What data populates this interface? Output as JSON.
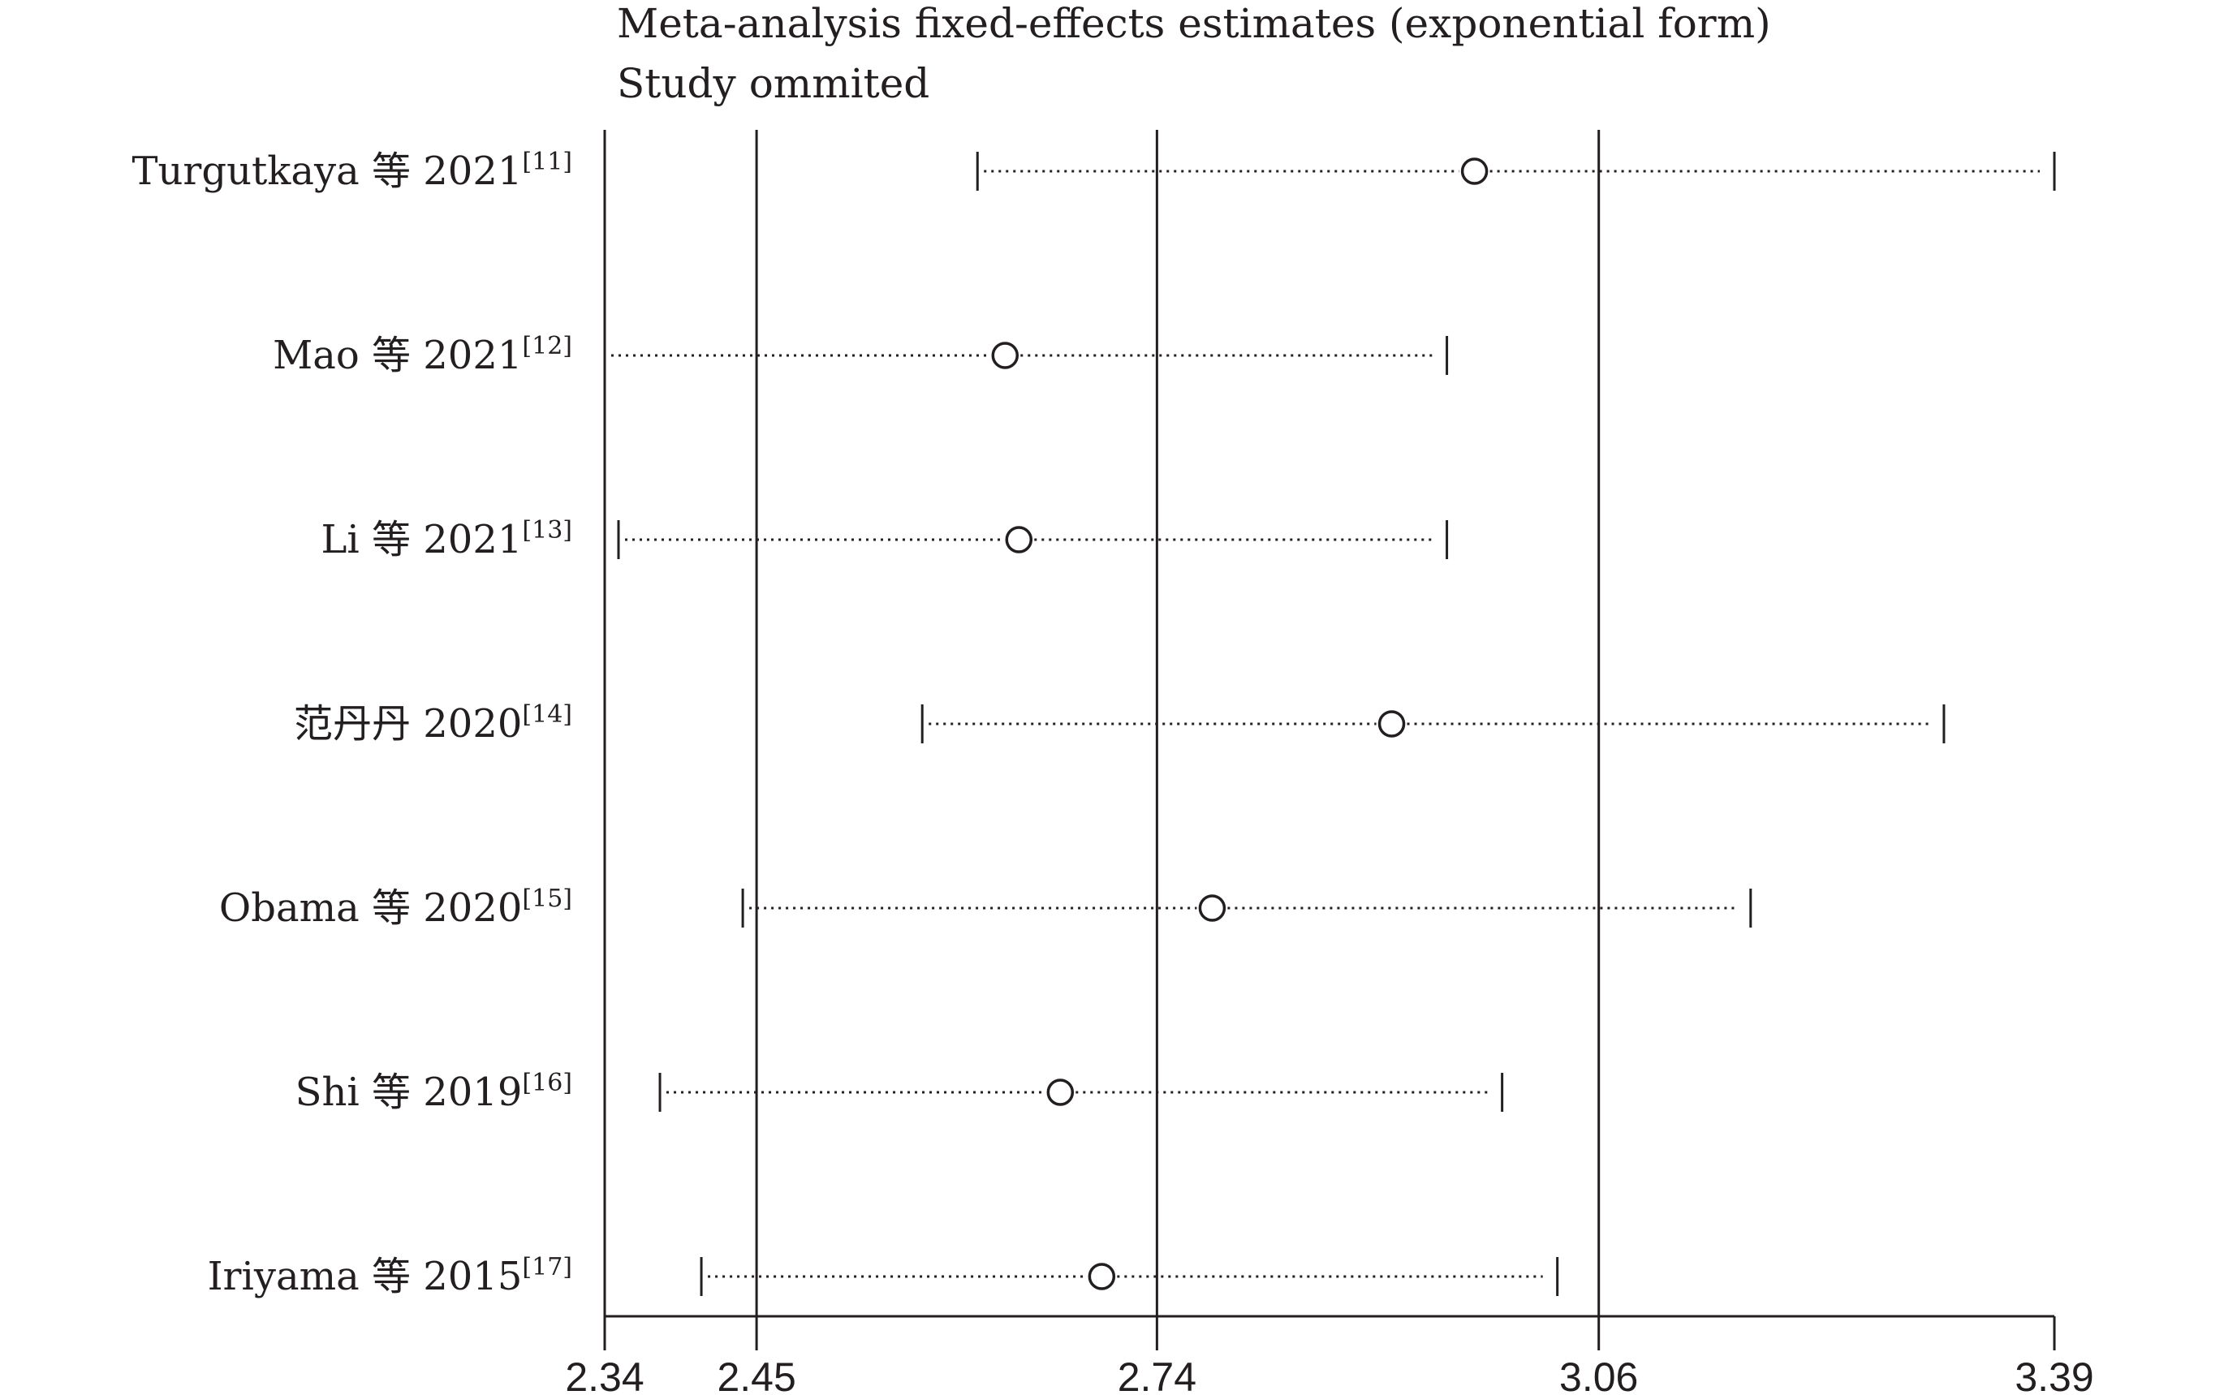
{
  "chart_data": {
    "type": "scatter",
    "title": "Meta-analysis fixed-effects estimates (exponential form)",
    "subtitle": "Study ommited",
    "xlabel": "",
    "ylabel": "",
    "xlim": [
      2.34,
      3.39
    ],
    "x_ticks": [
      "2.34",
      "2.45",
      "2.74",
      "3.06",
      "3.39"
    ],
    "reference_lines": [
      2.45,
      2.74,
      3.06
    ],
    "series": [
      {
        "values": [
          {
            "label": "Turgutkaya 等 2021",
            "ref": "[11]",
            "estimate": 2.97,
            "lower": 2.61,
            "upper": 3.39
          },
          {
            "label": "Mao 等 2021",
            "ref": "[12]",
            "estimate": 2.63,
            "lower": 2.34,
            "upper": 2.95
          },
          {
            "label": "Li 等 2021",
            "ref": "[13]",
            "estimate": 2.64,
            "lower": 2.35,
            "upper": 2.95
          },
          {
            "label": "范丹丹  2020",
            "ref": "[14]",
            "estimate": 2.91,
            "lower": 2.57,
            "upper": 3.31
          },
          {
            "label": "Obama 等 2020",
            "ref": "[15]",
            "estimate": 2.78,
            "lower": 2.44,
            "upper": 3.17
          },
          {
            "label": "Shi 等 2019",
            "ref": "[16]",
            "estimate": 2.67,
            "lower": 2.38,
            "upper": 2.99
          },
          {
            "label": "Iriyama 等 2015",
            "ref": "[17]",
            "estimate": 2.7,
            "lower": 2.41,
            "upper": 3.03
          }
        ]
      }
    ],
    "grid": false,
    "colors": {
      "ink": "#231f20"
    }
  }
}
